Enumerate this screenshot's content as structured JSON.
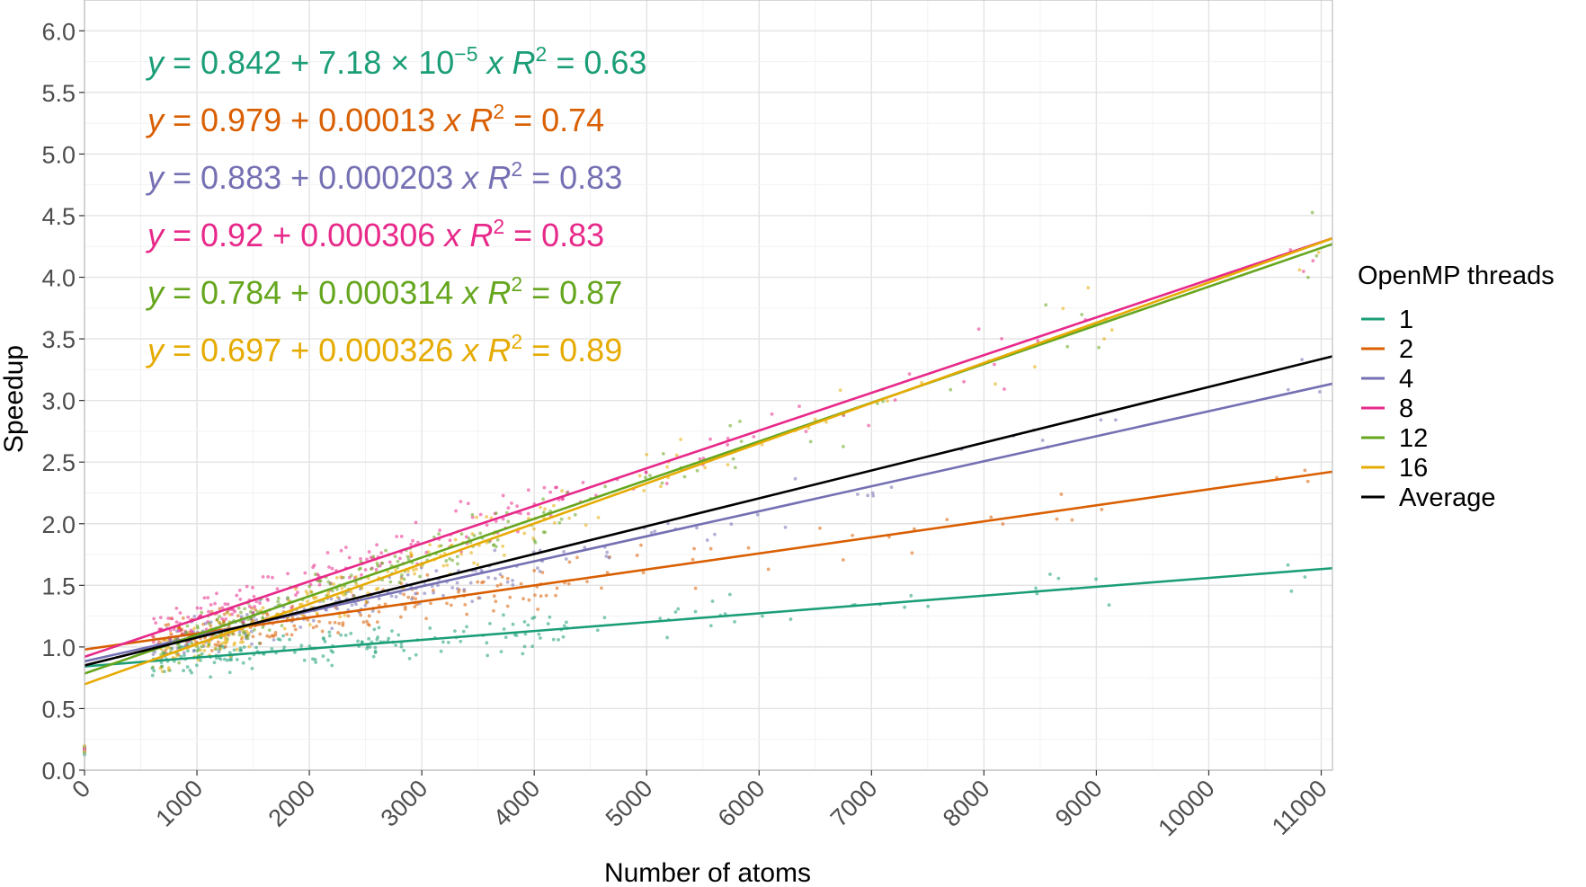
{
  "chart_data": {
    "type": "scatter",
    "title": "",
    "xlabel": "Number of atoms",
    "ylabel": "Speedup",
    "xlim": [
      0,
      11100
    ],
    "ylim": [
      0,
      6.25
    ],
    "xticks": [
      0,
      1000,
      2000,
      3000,
      4000,
      5000,
      6000,
      7000,
      8000,
      9000,
      10000,
      11000
    ],
    "xtick_labels": [
      "0",
      "1000",
      "2000",
      "3000",
      "4000",
      "5000",
      "6000",
      "7000",
      "8000",
      "9000",
      "10000",
      "11000"
    ],
    "yticks": [
      0,
      0.5,
      1,
      1.5,
      2,
      2.5,
      3,
      3.5,
      4,
      4.5,
      5,
      5.5,
      6
    ],
    "ytick_labels": [
      "0.0",
      "0.5",
      "1.0",
      "1.5",
      "2.0",
      "2.5",
      "3.0",
      "3.5",
      "4.0",
      "4.5",
      "5.0",
      "5.5",
      "6.0"
    ],
    "grid": true,
    "legend": {
      "title": "OpenMP threads",
      "position": "right"
    },
    "series": [
      {
        "name": "1",
        "color": "#1b9e77",
        "intercept": 0.842,
        "slope": 7.18e-05,
        "eq_b": "0.842",
        "eq_m": "7.18 × 10",
        "eq_m_exp": "−5",
        "r2": "0.63"
      },
      {
        "name": "2",
        "color": "#d95f02",
        "intercept": 0.979,
        "slope": 0.00013,
        "eq_b": "0.979",
        "eq_m": "0.00013",
        "eq_m_exp": "",
        "r2": "0.74"
      },
      {
        "name": "4",
        "color": "#7570b3",
        "intercept": 0.883,
        "slope": 0.000203,
        "eq_b": "0.883",
        "eq_m": "0.000203",
        "eq_m_exp": "",
        "r2": "0.83"
      },
      {
        "name": "8",
        "color": "#e7298a",
        "intercept": 0.92,
        "slope": 0.000306,
        "eq_b": "0.92",
        "eq_m": "0.000306",
        "eq_m_exp": "",
        "r2": "0.83"
      },
      {
        "name": "12",
        "color": "#66a61e",
        "intercept": 0.784,
        "slope": 0.000314,
        "eq_b": "0.784",
        "eq_m": "0.000314",
        "eq_m_exp": "",
        "r2": "0.87"
      },
      {
        "name": "16",
        "color": "#e6ab02",
        "intercept": 0.697,
        "slope": 0.000326,
        "eq_b": "0.697",
        "eq_m": "0.000326",
        "eq_m_exp": "",
        "r2": "0.89"
      },
      {
        "name": "Average",
        "color": "#000000",
        "intercept": 0.85,
        "slope": 0.000226,
        "eq_b": "",
        "eq_m": "",
        "eq_m_exp": "",
        "r2": ""
      }
    ],
    "point_clusters": [
      {
        "x": [
          600,
          1500
        ],
        "n": 70
      },
      {
        "x": [
          1500,
          3000
        ],
        "n": 70
      },
      {
        "x": [
          3000,
          4300
        ],
        "n": 40
      },
      {
        "x": [
          4300,
          5800
        ],
        "n": 14
      },
      {
        "x": [
          5800,
          7600
        ],
        "n": 8
      },
      {
        "x": [
          7600,
          9200
        ],
        "n": 7
      },
      {
        "x": [
          10600,
          11000
        ],
        "n": 3
      }
    ]
  }
}
